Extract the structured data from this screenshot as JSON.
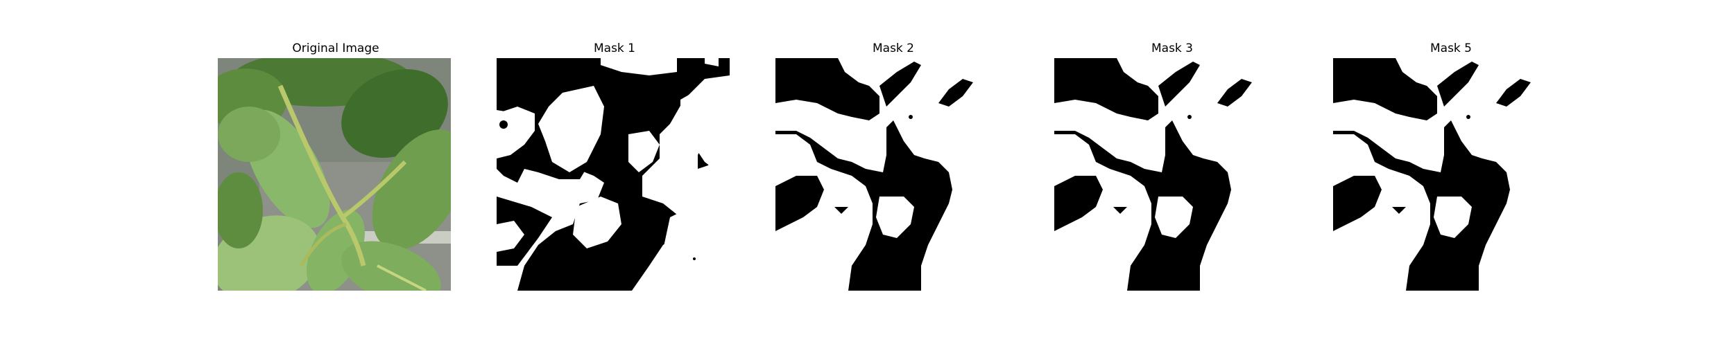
{
  "figure": {
    "panels": [
      {
        "title": "Original Image",
        "kind": "photo"
      },
      {
        "title": "Mask 1",
        "kind": "mask"
      },
      {
        "title": "Mask 2",
        "kind": "mask"
      },
      {
        "title": "Mask 3",
        "kind": "mask"
      },
      {
        "title": "Mask 5",
        "kind": "mask"
      }
    ]
  },
  "colors": {
    "background": "#ffffff",
    "mask_foreground": "#000000",
    "mask_background": "#ffffff",
    "leaf_dark": "#3f6e2c",
    "leaf_light": "#9cc27a",
    "stem": "#b8c86a",
    "ground": "#8a8f86"
  }
}
